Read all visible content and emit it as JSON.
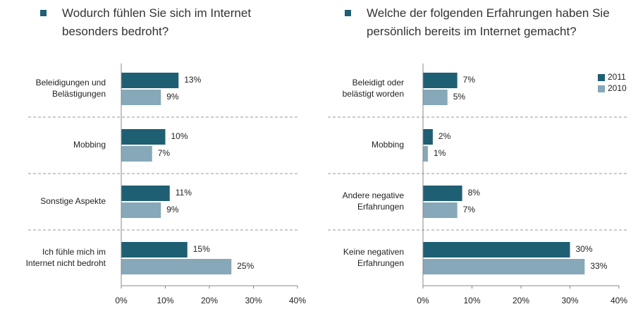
{
  "chart_data": [
    {
      "type": "hbar",
      "title": "Wodurch fühlen Sie sich im Internet besonders bedroht?",
      "categories": [
        [
          "Beleidigungen und",
          "Belästigungen"
        ],
        [
          "Mobbing"
        ],
        [
          "Sonstige Aspekte"
        ],
        [
          "Ich fühle mich im",
          "Internet nicht bedroht"
        ]
      ],
      "series": [
        {
          "color": "#1f5f74",
          "values": [
            13,
            10,
            11,
            15
          ],
          "value_labels": [
            "13%",
            "10%",
            "11%",
            "15%"
          ]
        },
        {
          "color": "#86a8b8",
          "values": [
            9,
            7,
            9,
            25
          ],
          "value_labels": [
            "9%",
            "7%",
            "9%",
            "25%"
          ]
        }
      ],
      "xlim": [
        0,
        40
      ],
      "xticks": [
        {
          "value": 0,
          "label": "0%"
        },
        {
          "value": 10,
          "label": "10%"
        },
        {
          "value": 20,
          "label": "20%"
        },
        {
          "value": 30,
          "label": "30%"
        },
        {
          "value": 40,
          "label": "40%"
        }
      ]
    },
    {
      "type": "hbar",
      "title": "Welche der folgenden Erfahrungen haben Sie persönlich bereits im Internet gemacht?",
      "categories": [
        [
          "Beleidigt oder",
          "belästigt worden"
        ],
        [
          "Mobbing"
        ],
        [
          "Andere negative",
          "Erfahrungen"
        ],
        [
          "Keine negativen",
          "Erfahrungen"
        ]
      ],
      "series": [
        {
          "name": "2011",
          "color": "#1f5f74",
          "values": [
            7,
            2,
            8,
            30
          ],
          "value_labels": [
            "7%",
            "2%",
            "8%",
            "30%"
          ]
        },
        {
          "name": "2010",
          "color": "#86a8b8",
          "values": [
            5,
            1,
            7,
            33
          ],
          "value_labels": [
            "5%",
            "1%",
            "7%",
            "33%"
          ]
        }
      ],
      "xlim": [
        0,
        40
      ],
      "xticks": [
        {
          "value": 0,
          "label": "0%"
        },
        {
          "value": 10,
          "label": "10%"
        },
        {
          "value": 20,
          "label": "20%"
        },
        {
          "value": 30,
          "label": "30%"
        },
        {
          "value": 40,
          "label": "40%"
        }
      ],
      "legend": "upper right"
    }
  ]
}
